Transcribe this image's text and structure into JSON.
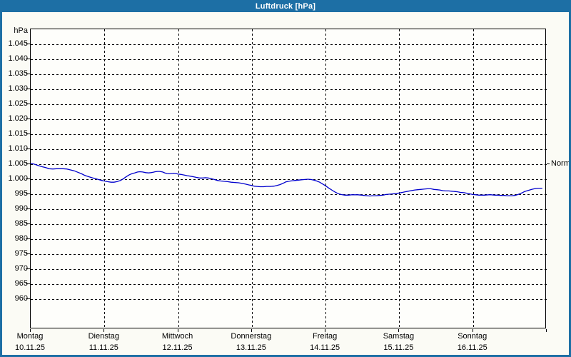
{
  "window": {
    "title": "Luftdruck [hPa]"
  },
  "colors": {
    "titlebar": "#1d6fa5",
    "window_border": "#1d6fa5",
    "plot_border": "#000000",
    "grid": "#000000",
    "line": "#0000cd",
    "background": "#fbfbf5",
    "plot_background": "#fefefb",
    "text": "#000000",
    "title_text": "#ffffff"
  },
  "chart_data": {
    "type": "line",
    "title": "Luftdruck [hPa]",
    "unit_label": "hPa",
    "ylim": [
      950,
      1050
    ],
    "grid": "dashed",
    "y_ticks": [
      {
        "value": 1045,
        "label": "1.045"
      },
      {
        "value": 1040,
        "label": "1.040"
      },
      {
        "value": 1035,
        "label": "1.035"
      },
      {
        "value": 1030,
        "label": "1.030"
      },
      {
        "value": 1025,
        "label": "1.025"
      },
      {
        "value": 1020,
        "label": "1.020"
      },
      {
        "value": 1015,
        "label": "1.015"
      },
      {
        "value": 1010,
        "label": "1.010"
      },
      {
        "value": 1005,
        "label": "1.005"
      },
      {
        "value": 1000,
        "label": "1.000"
      },
      {
        "value": 995,
        "label": "995"
      },
      {
        "value": 990,
        "label": "990"
      },
      {
        "value": 985,
        "label": "985"
      },
      {
        "value": 980,
        "label": "980"
      },
      {
        "value": 975,
        "label": "975"
      },
      {
        "value": 970,
        "label": "970"
      },
      {
        "value": 965,
        "label": "965"
      },
      {
        "value": 960,
        "label": "960"
      }
    ],
    "x_days": [
      {
        "name": "Montag",
        "date": "10.11.25"
      },
      {
        "name": "Dienstag",
        "date": "11.11.25"
      },
      {
        "name": "Mittwoch",
        "date": "12.11.25"
      },
      {
        "name": "Donnerstag",
        "date": "13.11.25"
      },
      {
        "name": "Freitag",
        "date": "14.11.25"
      },
      {
        "name": "Samstag",
        "date": "15.11.25"
      },
      {
        "name": "Sonntag",
        "date": "16.11.25"
      }
    ],
    "x_span_days": 7,
    "normal_marker": {
      "label": "Normal",
      "value": 1005
    },
    "series": [
      {
        "name": "Luftdruck",
        "color": "#0000cd",
        "points": [
          [
            0.0,
            1005.3
          ],
          [
            0.05,
            1005.0
          ],
          [
            0.1,
            1004.6
          ],
          [
            0.15,
            1004.2
          ],
          [
            0.2,
            1003.9
          ],
          [
            0.25,
            1003.5
          ],
          [
            0.3,
            1003.4
          ],
          [
            0.35,
            1003.5
          ],
          [
            0.4,
            1003.5
          ],
          [
            0.44,
            1003.5
          ],
          [
            0.49,
            1003.4
          ],
          [
            0.54,
            1003.1
          ],
          [
            0.59,
            1002.8
          ],
          [
            0.64,
            1002.3
          ],
          [
            0.69,
            1001.8
          ],
          [
            0.73,
            1001.3
          ],
          [
            0.78,
            1000.9
          ],
          [
            0.83,
            1000.5
          ],
          [
            0.88,
            1000.2
          ],
          [
            0.93,
            999.8
          ],
          [
            0.96,
            999.6
          ],
          [
            1.0,
            999.4
          ],
          [
            1.04,
            999.2
          ],
          [
            1.09,
            999.0
          ],
          [
            1.13,
            999.0
          ],
          [
            1.17,
            999.2
          ],
          [
            1.22,
            999.6
          ],
          [
            1.26,
            1000.2
          ],
          [
            1.3,
            1000.9
          ],
          [
            1.34,
            1001.5
          ],
          [
            1.38,
            1001.9
          ],
          [
            1.41,
            1002.1
          ],
          [
            1.45,
            1002.4
          ],
          [
            1.48,
            1002.5
          ],
          [
            1.52,
            1002.4
          ],
          [
            1.56,
            1002.2
          ],
          [
            1.6,
            1002.1
          ],
          [
            1.63,
            1002.2
          ],
          [
            1.66,
            1002.3
          ],
          [
            1.69,
            1002.5
          ],
          [
            1.72,
            1002.6
          ],
          [
            1.75,
            1002.6
          ],
          [
            1.79,
            1002.4
          ],
          [
            1.82,
            1002.1
          ],
          [
            1.85,
            1001.9
          ],
          [
            1.88,
            1001.8
          ],
          [
            1.91,
            1001.9
          ],
          [
            1.94,
            1002.0
          ],
          [
            1.97,
            1001.9
          ],
          [
            2.0,
            1001.7
          ],
          [
            2.04,
            1001.6
          ],
          [
            2.08,
            1001.4
          ],
          [
            2.12,
            1001.2
          ],
          [
            2.17,
            1001.0
          ],
          [
            2.21,
            1000.8
          ],
          [
            2.25,
            1000.6
          ],
          [
            2.29,
            1000.4
          ],
          [
            2.33,
            1000.4
          ],
          [
            2.37,
            1000.5
          ],
          [
            2.41,
            1000.4
          ],
          [
            2.45,
            1000.2
          ],
          [
            2.49,
            999.9
          ],
          [
            2.53,
            999.6
          ],
          [
            2.58,
            999.4
          ],
          [
            2.62,
            999.3
          ],
          [
            2.67,
            999.2
          ],
          [
            2.72,
            999.0
          ],
          [
            2.77,
            998.9
          ],
          [
            2.82,
            998.8
          ],
          [
            2.87,
            998.6
          ],
          [
            2.91,
            998.4
          ],
          [
            2.96,
            998.1
          ],
          [
            3.0,
            997.9
          ],
          [
            3.03,
            997.7
          ],
          [
            3.07,
            997.6
          ],
          [
            3.11,
            997.5
          ],
          [
            3.16,
            997.5
          ],
          [
            3.2,
            997.6
          ],
          [
            3.25,
            997.6
          ],
          [
            3.3,
            997.7
          ],
          [
            3.34,
            997.9
          ],
          [
            3.38,
            998.2
          ],
          [
            3.42,
            998.6
          ],
          [
            3.46,
            999.1
          ],
          [
            3.5,
            999.3
          ],
          [
            3.55,
            999.5
          ],
          [
            3.59,
            999.6
          ],
          [
            3.63,
            999.7
          ],
          [
            3.67,
            999.8
          ],
          [
            3.72,
            999.9
          ],
          [
            3.76,
            1000.0
          ],
          [
            3.8,
            999.9
          ],
          [
            3.84,
            999.7
          ],
          [
            3.88,
            999.4
          ],
          [
            3.92,
            999.0
          ],
          [
            3.96,
            998.4
          ],
          [
            4.0,
            997.8
          ],
          [
            4.04,
            997.1
          ],
          [
            4.09,
            996.3
          ],
          [
            4.13,
            995.7
          ],
          [
            4.17,
            995.2
          ],
          [
            4.21,
            994.9
          ],
          [
            4.26,
            994.7
          ],
          [
            4.31,
            994.7
          ],
          [
            4.35,
            994.8
          ],
          [
            4.4,
            994.8
          ],
          [
            4.44,
            994.8
          ],
          [
            4.49,
            994.7
          ],
          [
            4.52,
            994.6
          ],
          [
            4.56,
            994.5
          ],
          [
            4.6,
            994.4
          ],
          [
            4.64,
            994.5
          ],
          [
            4.69,
            994.5
          ],
          [
            4.73,
            994.6
          ],
          [
            4.78,
            994.7
          ],
          [
            4.82,
            994.9
          ],
          [
            4.86,
            995.0
          ],
          [
            4.9,
            995.1
          ],
          [
            4.95,
            995.2
          ],
          [
            5.0,
            995.4
          ],
          [
            5.04,
            995.6
          ],
          [
            5.08,
            995.8
          ],
          [
            5.12,
            996.0
          ],
          [
            5.16,
            996.2
          ],
          [
            5.21,
            996.4
          ],
          [
            5.25,
            996.5
          ],
          [
            5.29,
            996.6
          ],
          [
            5.33,
            996.7
          ],
          [
            5.38,
            996.8
          ],
          [
            5.43,
            996.8
          ],
          [
            5.47,
            996.6
          ],
          [
            5.51,
            996.5
          ],
          [
            5.55,
            996.4
          ],
          [
            5.59,
            996.2
          ],
          [
            5.63,
            996.1
          ],
          [
            5.67,
            996.1
          ],
          [
            5.71,
            996.0
          ],
          [
            5.75,
            995.9
          ],
          [
            5.79,
            995.8
          ],
          [
            5.83,
            995.6
          ],
          [
            5.88,
            995.5
          ],
          [
            5.92,
            995.3
          ],
          [
            5.96,
            995.1
          ],
          [
            6.0,
            994.9
          ],
          [
            6.04,
            994.8
          ],
          [
            6.08,
            994.7
          ],
          [
            6.12,
            994.7
          ],
          [
            6.16,
            994.7
          ],
          [
            6.21,
            994.8
          ],
          [
            6.25,
            994.8
          ],
          [
            6.29,
            994.7
          ],
          [
            6.33,
            994.7
          ],
          [
            6.38,
            994.6
          ],
          [
            6.42,
            994.6
          ],
          [
            6.46,
            994.5
          ],
          [
            6.5,
            994.5
          ],
          [
            6.53,
            994.5
          ],
          [
            6.57,
            994.6
          ],
          [
            6.6,
            994.8
          ],
          [
            6.63,
            995.1
          ],
          [
            6.67,
            995.5
          ],
          [
            6.7,
            995.9
          ],
          [
            6.74,
            996.2
          ],
          [
            6.78,
            996.5
          ],
          [
            6.81,
            996.7
          ],
          [
            6.85,
            996.9
          ],
          [
            6.88,
            997.0
          ],
          [
            6.92,
            997.0
          ],
          [
            6.94,
            997.0
          ]
        ]
      }
    ]
  }
}
